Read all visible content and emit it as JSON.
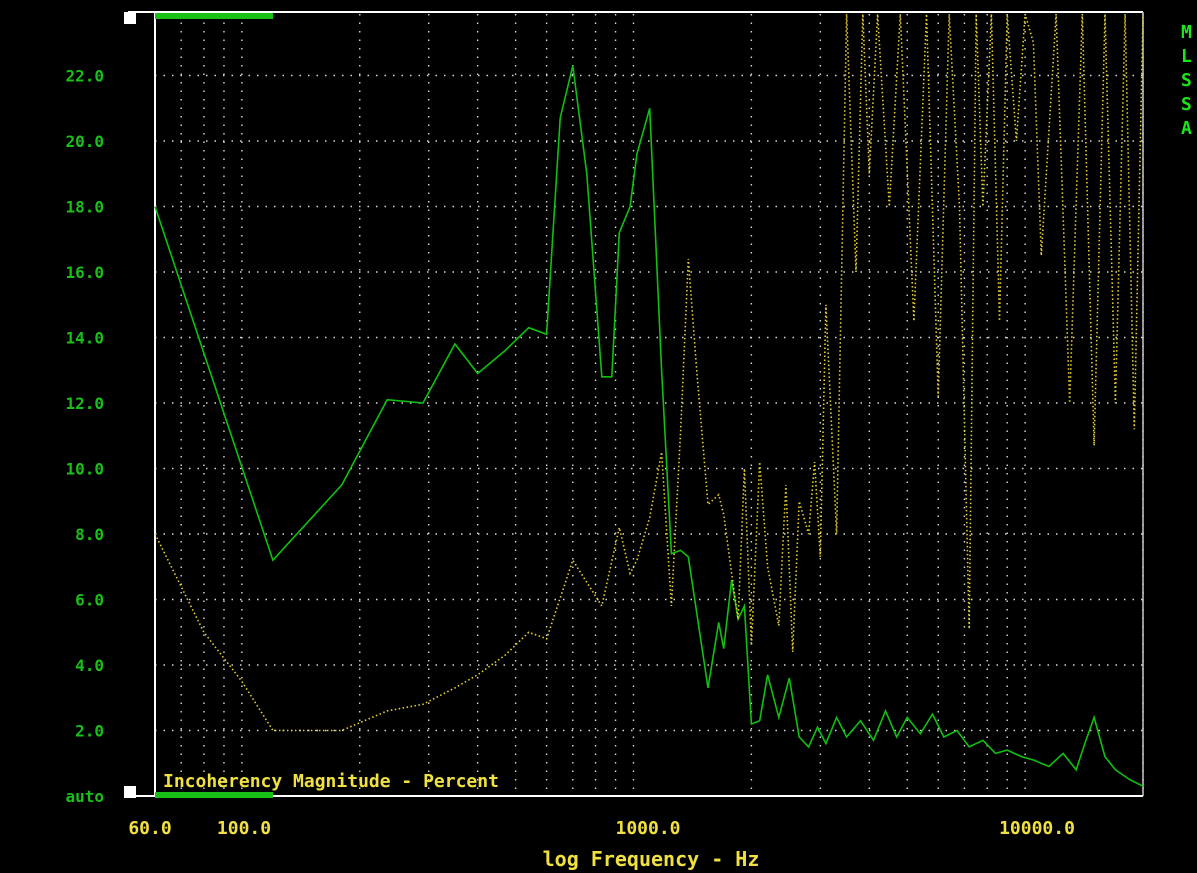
{
  "chart_data": {
    "type": "line",
    "title": "Incoherency Magnitude - Percent",
    "xlabel": "log Frequency - Hz",
    "x_scale": "log",
    "xlim": [
      60,
      20000
    ],
    "ylim": [
      0,
      23.5
    ],
    "y_ticks": [
      "auto",
      "2.0",
      "4.0",
      "6.0",
      "8.0",
      "10.0",
      "12.0",
      "14.0",
      "16.0",
      "18.0",
      "20.0",
      "22.0"
    ],
    "y_tick_values": [
      0,
      2,
      4,
      6,
      8,
      10,
      12,
      14,
      16,
      18,
      20,
      22
    ],
    "x_ticks": [
      "60.0",
      "100.0",
      "1000.0",
      "10000.0"
    ],
    "x_tick_values": [
      60,
      100,
      1000,
      10000
    ],
    "grid": true,
    "legend": [
      "M",
      "L",
      "S",
      "S",
      "A"
    ],
    "colors": {
      "axis_text": "#18c018",
      "xaxis_text": "#f0e040",
      "grid": "#d8d8d8",
      "solid": "#10c010",
      "dotted": "#e8d030",
      "frame": "#ffffff"
    },
    "series": [
      {
        "style": "solid",
        "color": "#10c010",
        "x": [
          60,
          120,
          180,
          235,
          290,
          350,
          400,
          470,
          540,
          600,
          650,
          700,
          760,
          830,
          880,
          920,
          980,
          1020,
          1100,
          1180,
          1250,
          1320,
          1380,
          1450,
          1550,
          1650,
          1700,
          1780,
          1850,
          1920,
          2000,
          2100,
          2200,
          2350,
          2500,
          2650,
          2800,
          2950,
          3100,
          3300,
          3500,
          3800,
          4100,
          4400,
          4700,
          5000,
          5400,
          5800,
          6200,
          6700,
          7200,
          7800,
          8400,
          9000,
          9800,
          10500,
          11500,
          12500,
          13500,
          14200,
          15000,
          16000,
          17000,
          18500,
          20000
        ],
        "y": [
          18.0,
          7.2,
          9.5,
          12.1,
          12.0,
          13.8,
          12.9,
          13.6,
          14.3,
          14.1,
          20.7,
          22.3,
          19.0,
          12.8,
          12.8,
          17.2,
          18.0,
          19.6,
          21.0,
          13.0,
          7.4,
          7.5,
          7.3,
          5.6,
          3.3,
          5.3,
          4.5,
          6.6,
          5.4,
          5.8,
          2.2,
          2.3,
          3.7,
          2.4,
          3.6,
          1.8,
          1.5,
          2.1,
          1.6,
          2.4,
          1.8,
          2.3,
          1.7,
          2.6,
          1.8,
          2.4,
          1.9,
          2.5,
          1.8,
          2.0,
          1.5,
          1.7,
          1.3,
          1.4,
          1.2,
          1.1,
          0.9,
          1.3,
          0.8,
          1.6,
          2.4,
          1.2,
          0.8,
          0.5,
          0.3
        ]
      },
      {
        "style": "dotted",
        "color": "#e8d030",
        "x": [
          60,
          80,
          100,
          120,
          180,
          235,
          290,
          350,
          400,
          470,
          540,
          600,
          700,
          830,
          920,
          980,
          1020,
          1100,
          1180,
          1250,
          1320,
          1380,
          1450,
          1550,
          1650,
          1700,
          1780,
          1850,
          1920,
          2000,
          2100,
          2200,
          2350,
          2450,
          2550,
          2650,
          2800,
          2900,
          3000,
          3100,
          3300,
          3500,
          3700,
          3850,
          4000,
          4200,
          4500,
          4800,
          5200,
          5600,
          6000,
          6400,
          6800,
          7200,
          7500,
          7800,
          8200,
          8600,
          9000,
          9500,
          10000,
          10500,
          11000,
          12000,
          13000,
          14000,
          15000,
          16000,
          17000,
          18000,
          19000,
          20000
        ],
        "y": [
          8.0,
          5.0,
          3.5,
          2.0,
          2.0,
          2.6,
          2.8,
          3.3,
          3.7,
          4.3,
          5.0,
          4.8,
          7.2,
          5.8,
          8.2,
          6.8,
          7.2,
          8.5,
          10.5,
          5.8,
          11.2,
          16.4,
          13.0,
          8.9,
          9.2,
          8.6,
          6.8,
          5.4,
          10.0,
          4.6,
          10.2,
          7.0,
          5.2,
          9.5,
          4.4,
          9.0,
          8.0,
          10.2,
          7.3,
          15.0,
          8.0,
          24.0,
          16.0,
          24.0,
          19.0,
          24.0,
          18.0,
          24.0,
          14.5,
          24.0,
          12.2,
          24.0,
          18.0,
          5.1,
          24.0,
          18.0,
          24.0,
          14.5,
          24.0,
          20.0,
          24.0,
          23.0,
          16.5,
          24.0,
          12.0,
          24.0,
          10.7,
          24.0,
          12.0,
          24.0,
          11.2,
          24.0
        ]
      }
    ]
  }
}
